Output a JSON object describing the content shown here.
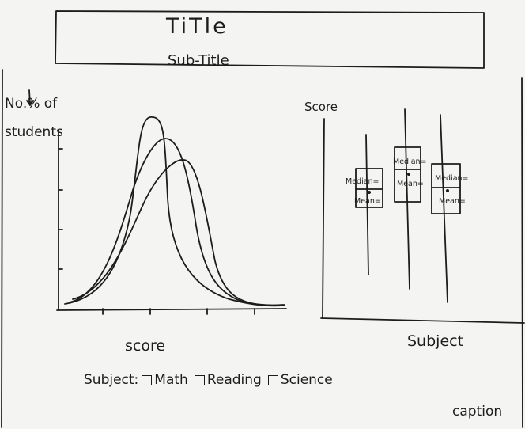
{
  "title": "TiTle",
  "subtitle": "Sub-Title",
  "left_chart": {
    "ylabel": "No.% of students",
    "xlabel": "score"
  },
  "right_chart": {
    "ylabel": "Score",
    "xlabel": "Subject",
    "boxes": [
      {
        "median_label": "Median=",
        "mean_label": "Mean="
      },
      {
        "median_label": "Median=",
        "mean_label": "Mean="
      },
      {
        "median_label": "Median=",
        "mean_label": "Mean="
      }
    ]
  },
  "legend": {
    "label": "Subject:",
    "items": [
      "Math",
      "Reading",
      "Science"
    ]
  },
  "caption": "caption"
}
